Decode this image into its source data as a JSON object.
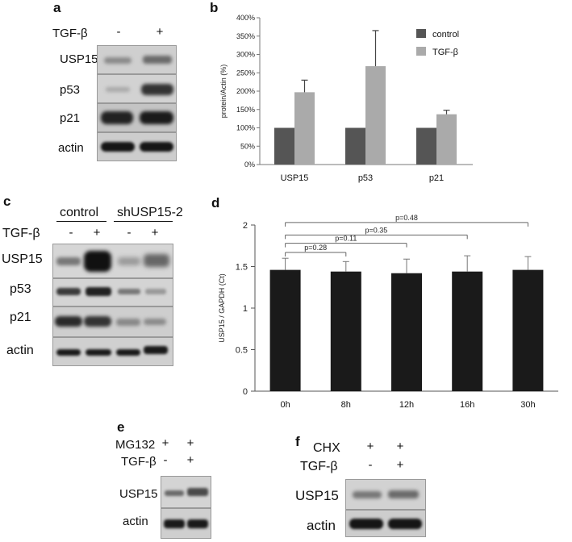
{
  "panels": {
    "a": {
      "letter": "a",
      "treatment": "TGF-β",
      "signs": [
        "-",
        "+"
      ],
      "rows": [
        "USP15",
        "p53",
        "p21",
        "actin"
      ]
    },
    "c": {
      "letter": "c",
      "groups": [
        "control",
        "shUSP15-2"
      ],
      "treatment": "TGF-β",
      "signs": [
        "-",
        "+",
        "-",
        "+"
      ],
      "rows": [
        "USP15",
        "p53",
        "p21",
        "actin"
      ]
    },
    "e": {
      "letter": "e",
      "treatments": [
        "MG132",
        "TGF-β"
      ],
      "signs": [
        [
          "+",
          "+"
        ],
        [
          "-",
          "+"
        ]
      ],
      "rows": [
        "USP15",
        "actin"
      ]
    },
    "f": {
      "letter": "f",
      "treatments": [
        "CHX",
        "TGF-β"
      ],
      "signs": [
        [
          "+",
          "+"
        ],
        [
          "-",
          "+"
        ]
      ],
      "rows": [
        "USP15",
        "actin"
      ]
    }
  },
  "chart_data": [
    {
      "panel": "b",
      "type": "bar",
      "categories": [
        "USP15",
        "p53",
        "p21"
      ],
      "series": [
        {
          "name": "control",
          "values": [
            100,
            100,
            100
          ],
          "color": "#555555"
        },
        {
          "name": "TGF-β",
          "values": [
            197,
            268,
            137
          ],
          "errors": [
            33,
            97,
            11
          ],
          "color": "#aaaaaa"
        }
      ],
      "ylabel": "protein/Actin (%)",
      "ylim": [
        0,
        400
      ],
      "yticks": [
        "0%",
        "50%",
        "100%",
        "150%",
        "200%",
        "250%",
        "300%",
        "350%",
        "400%"
      ],
      "legend_position": "top-right",
      "grid": false
    },
    {
      "panel": "d",
      "type": "bar",
      "categories": [
        "0h",
        "8h",
        "12h",
        "16h",
        "30h"
      ],
      "values": [
        1.46,
        1.44,
        1.42,
        1.44,
        1.46
      ],
      "errors": [
        0.14,
        0.12,
        0.17,
        0.19,
        0.16
      ],
      "color": "#1a1a1a",
      "ylabel": "USP15 / GAPDH (Ct)",
      "ylim": [
        0,
        2
      ],
      "yticks": [
        "0",
        "0.5",
        "1",
        "1.5",
        "2"
      ],
      "comparisons": [
        {
          "from": "0h",
          "to": "8h",
          "label": "p=0.28"
        },
        {
          "from": "0h",
          "to": "12h",
          "label": "p=0.11"
        },
        {
          "from": "0h",
          "to": "16h",
          "label": "p=0.35"
        },
        {
          "from": "0h",
          "to": "30h",
          "label": "p=0.48"
        }
      ],
      "grid": false
    }
  ]
}
